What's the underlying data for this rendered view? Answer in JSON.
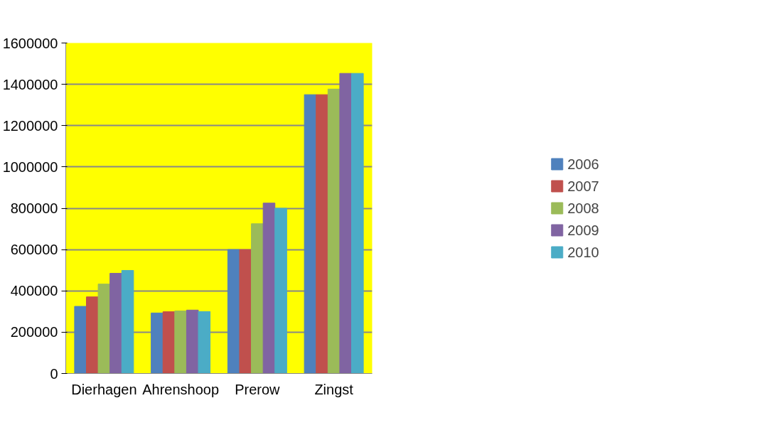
{
  "chart_data": {
    "type": "bar",
    "categories": [
      "Dierhagen",
      "Ahrenshoop",
      "Prerow",
      "Zingst"
    ],
    "series": [
      {
        "name": "2006",
        "color": "#4f81bd",
        "values": [
          325000,
          293000,
          600000,
          1350000
        ]
      },
      {
        "name": "2007",
        "color": "#c0504d",
        "values": [
          371000,
          299000,
          600000,
          1350000
        ]
      },
      {
        "name": "2008",
        "color": "#9bbb59",
        "values": [
          433000,
          303000,
          725000,
          1377000
        ]
      },
      {
        "name": "2009",
        "color": "#8064a2",
        "values": [
          485000,
          307000,
          825000,
          1453000
        ]
      },
      {
        "name": "2010",
        "color": "#4bacc6",
        "values": [
          499000,
          300000,
          800000,
          1453000
        ]
      }
    ],
    "ylim": [
      0,
      1600000
    ],
    "yticks": [
      0,
      200000,
      400000,
      600000,
      800000,
      1000000,
      1200000,
      1400000,
      1600000
    ],
    "grid": "y",
    "legend": "right"
  }
}
